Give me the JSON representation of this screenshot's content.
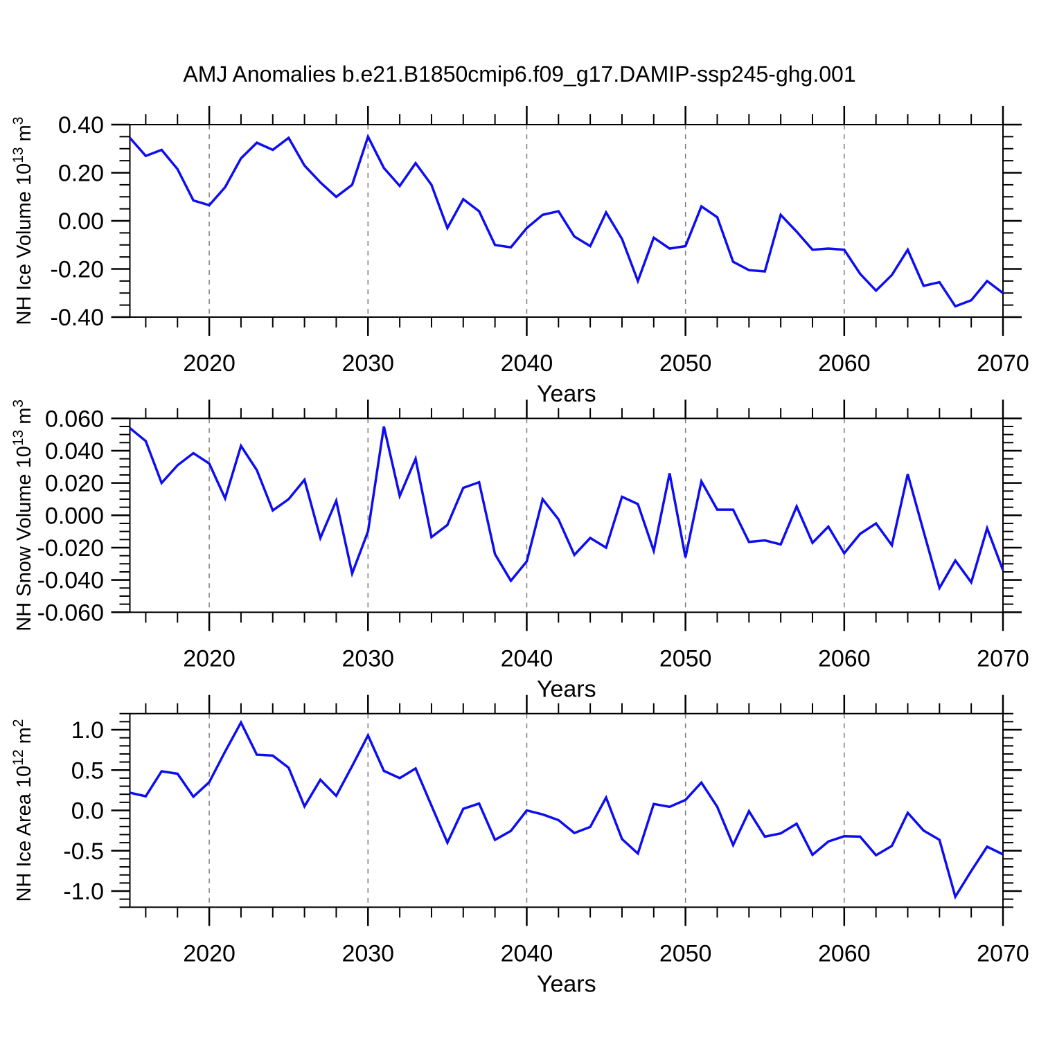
{
  "title": "AMJ Anomalies b.e21.B1850cmip6.f09_g17.DAMIP-ssp245-ghg.001",
  "colors": {
    "line": "#0d0df2",
    "frame": "#000000",
    "grid": "#7b7b7b"
  },
  "chart_data": {
    "type": "line",
    "title": "AMJ Anomalies b.e21.B1850cmip6.f09_g17.DAMIP-ssp245-ghg.001",
    "xlabel": "Years",
    "xlim": [
      2015,
      2070
    ],
    "x_major_ticks": [
      2020,
      2030,
      2040,
      2050,
      2060,
      2070
    ],
    "x_gridlines": [
      2020,
      2030,
      2040,
      2050,
      2060
    ],
    "x_minor_step": 2,
    "grid": "dashed vertical lines at decades",
    "legend": "none",
    "years": [
      2015,
      2016,
      2017,
      2018,
      2019,
      2020,
      2021,
      2022,
      2023,
      2024,
      2025,
      2026,
      2027,
      2028,
      2029,
      2030,
      2031,
      2032,
      2033,
      2034,
      2035,
      2036,
      2037,
      2038,
      2039,
      2040,
      2041,
      2042,
      2043,
      2044,
      2045,
      2046,
      2047,
      2048,
      2049,
      2050,
      2051,
      2052,
      2053,
      2054,
      2055,
      2056,
      2057,
      2058,
      2059,
      2060,
      2061,
      2062,
      2063,
      2064,
      2065,
      2066,
      2067,
      2068,
      2069,
      2070
    ],
    "panels": [
      {
        "id": "nh-ice-volume",
        "ylabel": "NH Ice Volume 10^13 m^3",
        "ylabel_parts": [
          [
            "t",
            "NH Ice Volume 10"
          ],
          [
            "sup",
            "13"
          ],
          [
            "t",
            " m"
          ],
          [
            "sup",
            "3"
          ]
        ],
        "ylim": [
          -0.4,
          0.4
        ],
        "y_tick_values": [
          0.4,
          0.2,
          0.0,
          -0.2,
          -0.4
        ],
        "y_tick_labels": [
          "0.40",
          "0.20",
          "0.00",
          "-0.20",
          "-0.40"
        ],
        "y_minor_step": 0.05,
        "values": [
          0.345,
          0.27,
          0.295,
          0.215,
          0.085,
          0.065,
          0.14,
          0.26,
          0.325,
          0.295,
          0.345,
          0.23,
          0.16,
          0.1,
          0.15,
          0.35,
          0.22,
          0.145,
          0.24,
          0.15,
          -0.03,
          0.09,
          0.04,
          -0.1,
          -0.11,
          -0.03,
          0.025,
          0.04,
          -0.065,
          -0.105,
          0.035,
          -0.075,
          -0.25,
          -0.07,
          -0.115,
          -0.105,
          0.06,
          0.015,
          -0.17,
          -0.205,
          -0.21,
          0.025,
          -0.045,
          -0.12,
          -0.115,
          -0.12,
          -0.22,
          -0.29,
          -0.225,
          -0.12,
          -0.27,
          -0.255,
          -0.355,
          -0.33,
          -0.25,
          -0.3
        ]
      },
      {
        "id": "nh-snow-volume",
        "ylabel": "NH Snow Volume 10^13 m^3",
        "ylabel_parts": [
          [
            "t",
            "NH Snow Volume 10"
          ],
          [
            "sup",
            "13"
          ],
          [
            "t",
            " m"
          ],
          [
            "sup",
            "3"
          ]
        ],
        "ylim": [
          -0.06,
          0.06
        ],
        "y_tick_values": [
          0.06,
          0.04,
          0.02,
          0.0,
          -0.02,
          -0.04,
          -0.06
        ],
        "y_tick_labels": [
          "0.060",
          "0.040",
          "0.020",
          "0.000",
          "-0.020",
          "-0.040",
          "-0.060"
        ],
        "y_minor_step": 0.005,
        "values": [
          0.054,
          0.046,
          0.02,
          0.031,
          0.0385,
          0.032,
          0.0105,
          0.043,
          0.028,
          0.003,
          0.01,
          0.022,
          -0.014,
          0.009,
          -0.036,
          -0.01,
          0.055,
          0.012,
          0.035,
          -0.0135,
          -0.006,
          0.017,
          0.0205,
          -0.024,
          -0.0405,
          -0.0285,
          0.01,
          -0.0025,
          -0.0245,
          -0.014,
          -0.02,
          0.0115,
          0.007,
          -0.022,
          0.026,
          -0.026,
          0.021,
          0.0035,
          0.0035,
          -0.0165,
          -0.0155,
          -0.018,
          0.0055,
          -0.017,
          -0.007,
          -0.0235,
          -0.0115,
          -0.005,
          -0.0185,
          0.0255,
          -0.01,
          -0.045,
          -0.028,
          -0.0415,
          -0.008,
          -0.034
        ]
      },
      {
        "id": "nh-ice-area",
        "ylabel": "NH Ice Area 10^12 m^2",
        "ylabel_parts": [
          [
            "t",
            "NH Ice Area 10"
          ],
          [
            "sup",
            "12"
          ],
          [
            "t",
            " m"
          ],
          [
            "sup",
            "2"
          ]
        ],
        "ylim": [
          -1.2,
          1.2
        ],
        "y_tick_values": [
          1.0,
          0.5,
          0.0,
          -0.5,
          -1.0
        ],
        "y_tick_labels": [
          "1.0",
          "0.5",
          "0.0",
          "-0.5",
          "-1.0"
        ],
        "y_minor_step": 0.1,
        "values": [
          0.22,
          0.175,
          0.485,
          0.455,
          0.17,
          0.35,
          0.73,
          1.09,
          0.69,
          0.68,
          0.53,
          0.05,
          0.38,
          0.18,
          0.55,
          0.93,
          0.49,
          0.4,
          0.52,
          0.06,
          -0.4,
          0.02,
          0.085,
          -0.365,
          -0.255,
          0.0,
          -0.05,
          -0.12,
          -0.28,
          -0.205,
          0.16,
          -0.355,
          -0.535,
          0.08,
          0.045,
          0.13,
          0.345,
          0.045,
          -0.43,
          -0.01,
          -0.325,
          -0.285,
          -0.165,
          -0.55,
          -0.385,
          -0.32,
          -0.325,
          -0.555,
          -0.44,
          -0.03,
          -0.25,
          -0.365,
          -1.07,
          -0.75,
          -0.45,
          -0.545
        ]
      }
    ]
  }
}
